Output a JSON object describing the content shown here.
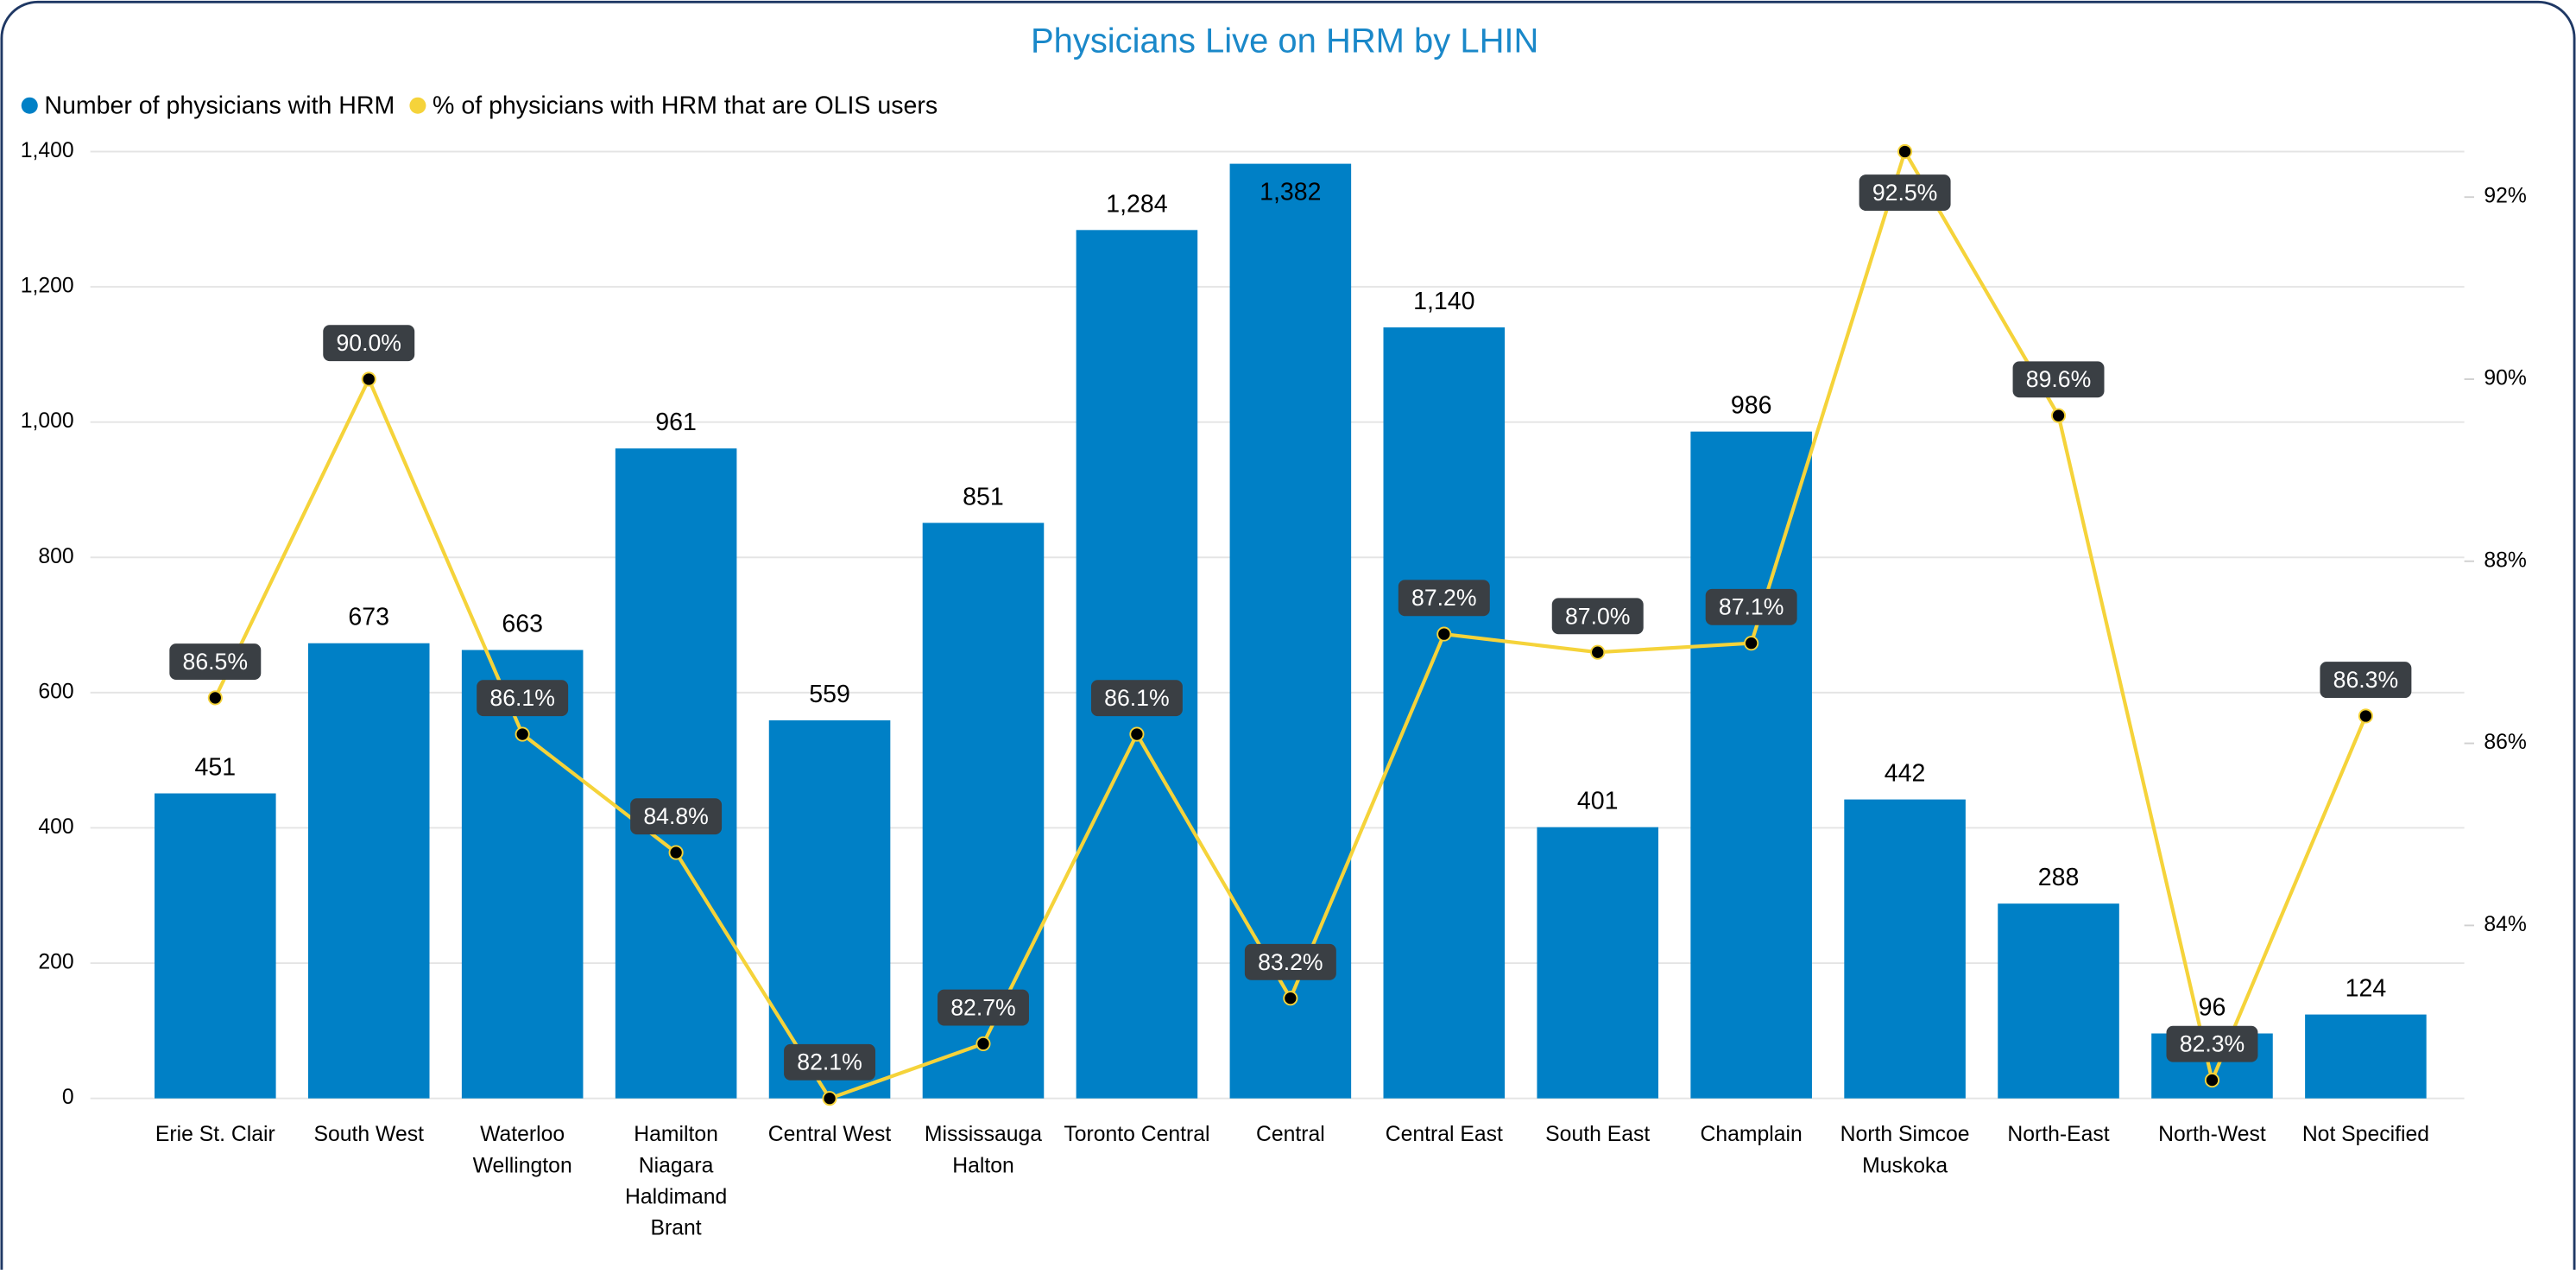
{
  "chart_data": {
    "type": "bar",
    "title": "Physicians Live on HRM by LHIN",
    "categories": [
      "Erie St. Clair",
      "South West",
      "Waterloo Wellington",
      "Hamilton Niagara Haldimand Brant",
      "Central West",
      "Mississauga Halton",
      "Toronto Central",
      "Central",
      "Central East",
      "South East",
      "Champlain",
      "North Simcoe Muskoka",
      "North-East",
      "North-West",
      "Not Specified"
    ],
    "series": [
      {
        "name": "Number of physicians with HRM",
        "type": "bar",
        "color": "#0080c6",
        "values": [
          451,
          673,
          663,
          961,
          559,
          851,
          1284,
          1382,
          1140,
          401,
          986,
          442,
          288,
          96,
          124
        ],
        "value_labels": [
          "451",
          "673",
          "663",
          "961",
          "559",
          "851",
          "1,284",
          "1,382",
          "1,140",
          "401",
          "986",
          "442",
          "288",
          "96",
          "124"
        ]
      },
      {
        "name": "% of physicians with HRM that are OLIS users",
        "type": "line",
        "axis": "y2",
        "color": "#f5d33a",
        "values": [
          86.5,
          90.0,
          86.1,
          84.8,
          82.1,
          82.7,
          86.1,
          83.2,
          87.2,
          87.0,
          87.1,
          92.5,
          89.6,
          82.3,
          86.3
        ],
        "value_labels": [
          "86.5%",
          "90.0%",
          "86.1%",
          "84.8%",
          "82.1%",
          "82.7%",
          "86.1%",
          "83.2%",
          "87.2%",
          "87.0%",
          "87.1%",
          "92.5%",
          "89.6%",
          "82.3%",
          "86.3%"
        ]
      }
    ],
    "ylim": [
      0,
      1400
    ],
    "yticks": [
      0,
      200,
      400,
      600,
      800,
      {
        "value": 1000,
        "label": "1,000"
      },
      {
        "value": 1200,
        "label": "1,200"
      },
      {
        "value": 1400,
        "label": "1,400"
      }
    ],
    "y2lim": [
      82.1,
      92.5
    ],
    "y2ticks": [
      {
        "value": 84,
        "label": "84%"
      },
      {
        "value": 86,
        "label": "86%"
      },
      {
        "value": 88,
        "label": "88%"
      },
      {
        "value": 90,
        "label": "90%"
      },
      {
        "value": 92,
        "label": "92%"
      }
    ],
    "grid": true,
    "legend": "top-left"
  }
}
